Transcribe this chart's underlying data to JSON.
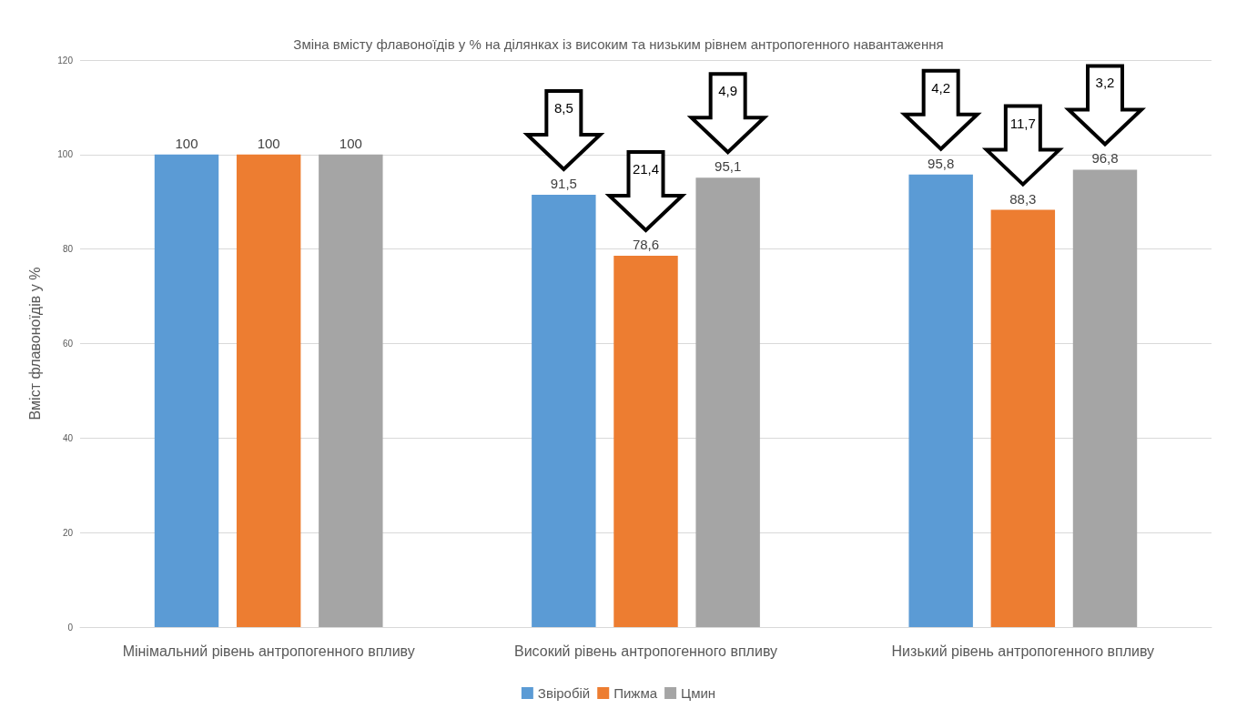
{
  "chart_data": {
    "type": "bar",
    "title": "Зміна вмісту флавоноїдів у % на ділянках із високим та низьким рівнем антропогенного навантаження",
    "ylabel": "Вміст флавоноїдів у %",
    "categories": [
      "Мінімальний рівень антропогенного впливу",
      "Високий рівень антропогенного впливу",
      "Низький рівень антропогенного впливу"
    ],
    "series": [
      {
        "name": "Звіробій",
        "color": "#5b9bd5",
        "values": [
          100,
          91.5,
          95.8
        ],
        "value_labels": [
          "100",
          "91,5",
          "95,8"
        ]
      },
      {
        "name": "Пижма",
        "color": "#ed7d31",
        "values": [
          100,
          78.6,
          88.3
        ],
        "value_labels": [
          "100",
          "78,6",
          "88,3"
        ]
      },
      {
        "name": "Цмин",
        "color": "#a5a5a5",
        "values": [
          100,
          95.1,
          96.8
        ],
        "value_labels": [
          "100",
          "95,1",
          "96,8"
        ]
      }
    ],
    "annotations": [
      "8,5",
      "21,4",
      "4,9",
      "4,2",
      "11,7",
      "3,2"
    ],
    "ylim": [
      0,
      120
    ],
    "yticks": [
      0,
      20,
      40,
      60,
      80,
      100,
      120
    ],
    "grid": "y",
    "legend": "bottom"
  }
}
